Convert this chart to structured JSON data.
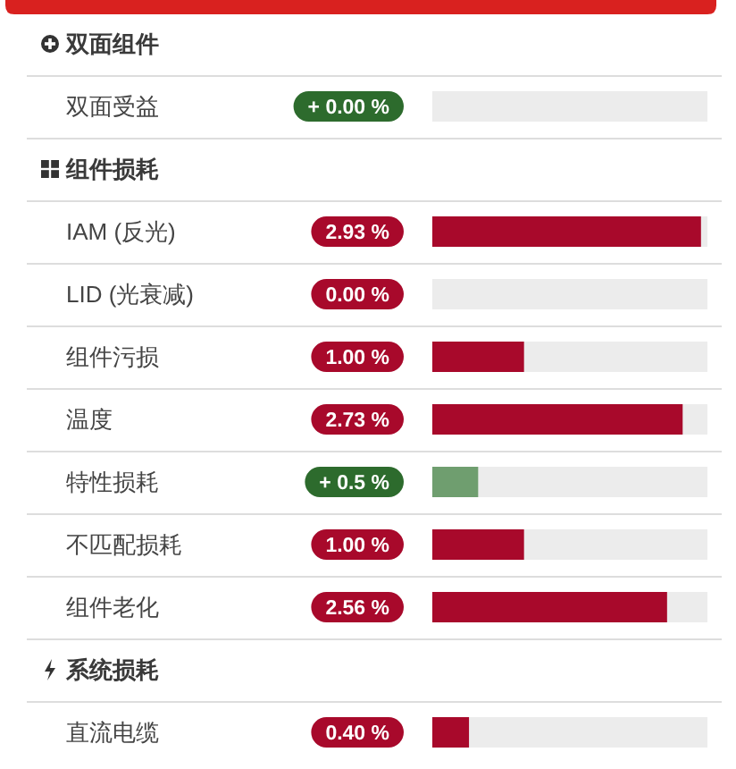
{
  "chart_data": {
    "type": "bar",
    "orientation": "horizontal",
    "categories": [
      "双面受益",
      "IAM (反光)",
      "LID (光衰减)",
      "组件污损",
      "温度",
      "特性损耗",
      "不匹配损耗",
      "组件老化",
      "直流电缆"
    ],
    "values": [
      0,
      2.93,
      0,
      1.0,
      2.73,
      0.5,
      1.0,
      2.56,
      0.4
    ],
    "colors": [
      "#6f9e6f",
      "#a8092b",
      "#a8092b",
      "#a8092b",
      "#a8092b",
      "#6f9e6f",
      "#a8092b",
      "#a8092b",
      "#a8092b"
    ],
    "value_labels": [
      "+ 0.00 %",
      "2.93 %",
      "0.00 %",
      "1.00 %",
      "2.73 %",
      "+ 0.5 %",
      "1.00 %",
      "2.56 %",
      "0.40 %"
    ],
    "xlim": [
      0,
      3
    ],
    "tick_labels": "y",
    "grid": "y",
    "annotations": [
      "双面组件",
      "组件损耗",
      "系统损耗"
    ]
  }
}
